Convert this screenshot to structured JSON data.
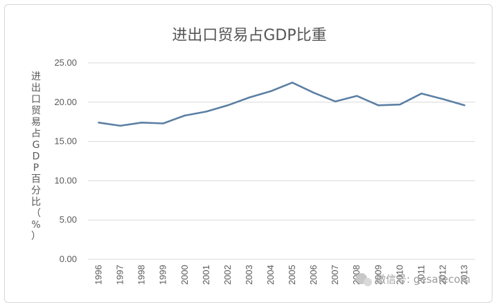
{
  "chart_data": {
    "type": "line",
    "title": "进出口贸易占GDP比重",
    "ylabel": "进出口贸易占GDP百分比（%）",
    "xlabel": "",
    "categories": [
      "1996",
      "1997",
      "1998",
      "1999",
      "2000",
      "2001",
      "2002",
      "2003",
      "2004",
      "2005",
      "2006",
      "2007",
      "2008",
      "2009",
      "2010",
      "2011",
      "2012",
      "2013"
    ],
    "series": [
      {
        "values": [
          17.4,
          17.0,
          17.4,
          17.3,
          18.3,
          18.8,
          19.6,
          20.6,
          21.4,
          22.5,
          21.2,
          20.1,
          20.8,
          19.6,
          19.7,
          21.1,
          20.4,
          19.6
        ]
      }
    ],
    "yticks": [
      "25.00",
      "20.00",
      "15.00",
      "10.00",
      "5.00",
      "0.00"
    ],
    "ylim": [
      0,
      25
    ],
    "grid": "horizontal",
    "legend": "none",
    "line_color": "#5b7fa3",
    "grid_color": "#d9d9d9"
  },
  "watermark": {
    "text": "微信号: gesafecom",
    "icon": "wechat-icon"
  }
}
